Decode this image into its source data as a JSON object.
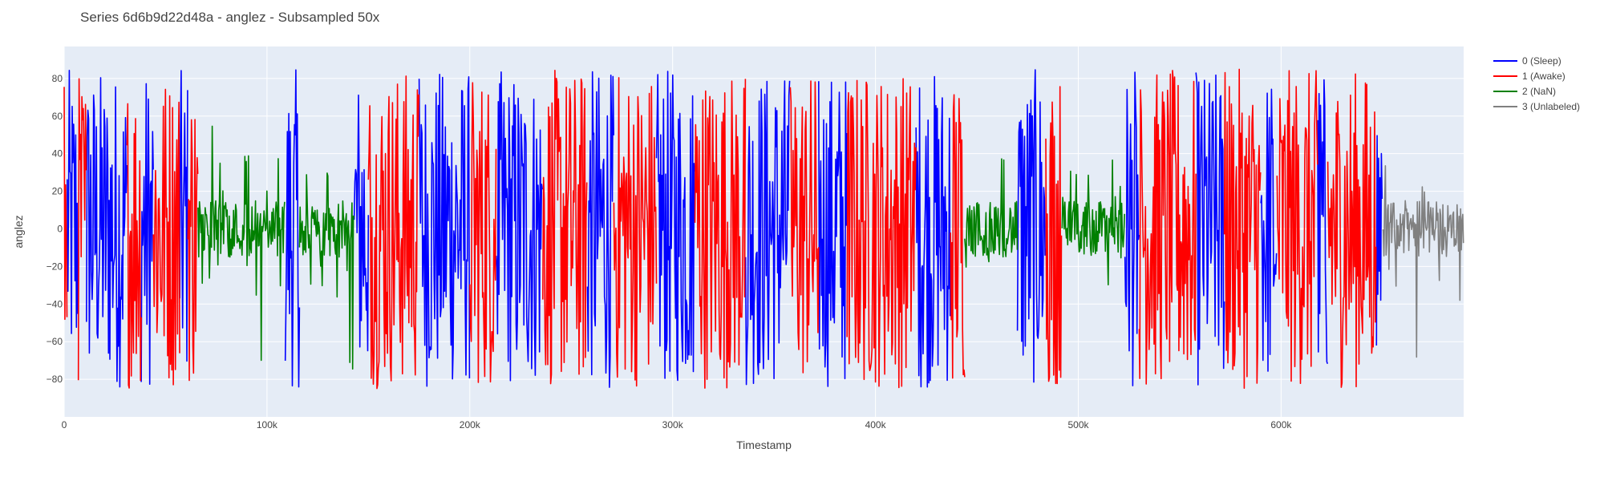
{
  "chart_data": {
    "type": "line",
    "title": "Series 6d6b9d22d48a - anglez - Subsampled 50x",
    "xlabel": "Timestamp",
    "ylabel": "anglez",
    "xlim": [
      0,
      690000
    ],
    "ylim": [
      -100,
      97
    ],
    "x_ticks": [
      0,
      100000,
      200000,
      300000,
      400000,
      500000,
      600000
    ],
    "x_tick_labels": [
      "0",
      "100k",
      "200k",
      "300k",
      "400k",
      "500k",
      "600k"
    ],
    "y_ticks": [
      -80,
      -60,
      -40,
      -20,
      0,
      20,
      40,
      60,
      80
    ],
    "y_tick_labels": [
      "−80",
      "−60",
      "−40",
      "−20",
      "0",
      "20",
      "40",
      "60",
      "80"
    ],
    "grid": true,
    "legend_position": "top-right outside",
    "series": [
      {
        "name": "0 (Sleep)",
        "color": "#0000ff",
        "segments": [
          [
            1500,
            7000
          ],
          [
            11000,
            31000
          ],
          [
            38000,
            44000
          ],
          [
            57000,
            61000
          ],
          [
            109000,
            116000
          ],
          [
            143000,
            150000
          ],
          [
            175000,
            200000
          ],
          [
            213000,
            236000
          ],
          [
            258000,
            271000
          ],
          [
            292000,
            311000
          ],
          [
            336000,
            358000
          ],
          [
            372000,
            386000
          ],
          [
            420000,
            437000
          ],
          [
            470000,
            484000
          ],
          [
            523000,
            530000
          ],
          [
            558000,
            572000
          ],
          [
            590000,
            598000
          ],
          [
            618000,
            623000
          ],
          [
            647000,
            650000
          ]
        ]
      },
      {
        "name": "1 (Awake)",
        "color": "#ff0000",
        "segments": [
          [
            0,
            1500
          ],
          [
            7000,
            11000
          ],
          [
            31000,
            38000
          ],
          [
            44000,
            57000
          ],
          [
            61000,
            66000
          ],
          [
            150000,
            175000
          ],
          [
            200000,
            213000
          ],
          [
            236000,
            258000
          ],
          [
            271000,
            292000
          ],
          [
            311000,
            336000
          ],
          [
            358000,
            372000
          ],
          [
            386000,
            420000
          ],
          [
            437000,
            444000
          ],
          [
            484000,
            492000
          ],
          [
            530000,
            558000
          ],
          [
            572000,
            590000
          ],
          [
            598000,
            618000
          ],
          [
            623000,
            647000
          ]
        ]
      },
      {
        "name": "2 (NaN)",
        "color": "#008000",
        "segments": [
          [
            66000,
            109000
          ],
          [
            116000,
            143000
          ],
          [
            444000,
            470000
          ],
          [
            492000,
            523000
          ]
        ]
      },
      {
        "name": "3 (Unlabeled)",
        "color": "#808080",
        "segments": [
          [
            650000,
            690000
          ]
        ]
      }
    ]
  },
  "legend": {
    "items": [
      {
        "label": "0 (Sleep)",
        "color": "#0000ff"
      },
      {
        "label": "1 (Awake)",
        "color": "#ff0000"
      },
      {
        "label": "2 (NaN)",
        "color": "#008000"
      },
      {
        "label": "3 (Unlabeled)",
        "color": "#808080"
      }
    ]
  },
  "colors": {
    "plot_background": "#e5ecf6",
    "grid": "#ffffff"
  }
}
